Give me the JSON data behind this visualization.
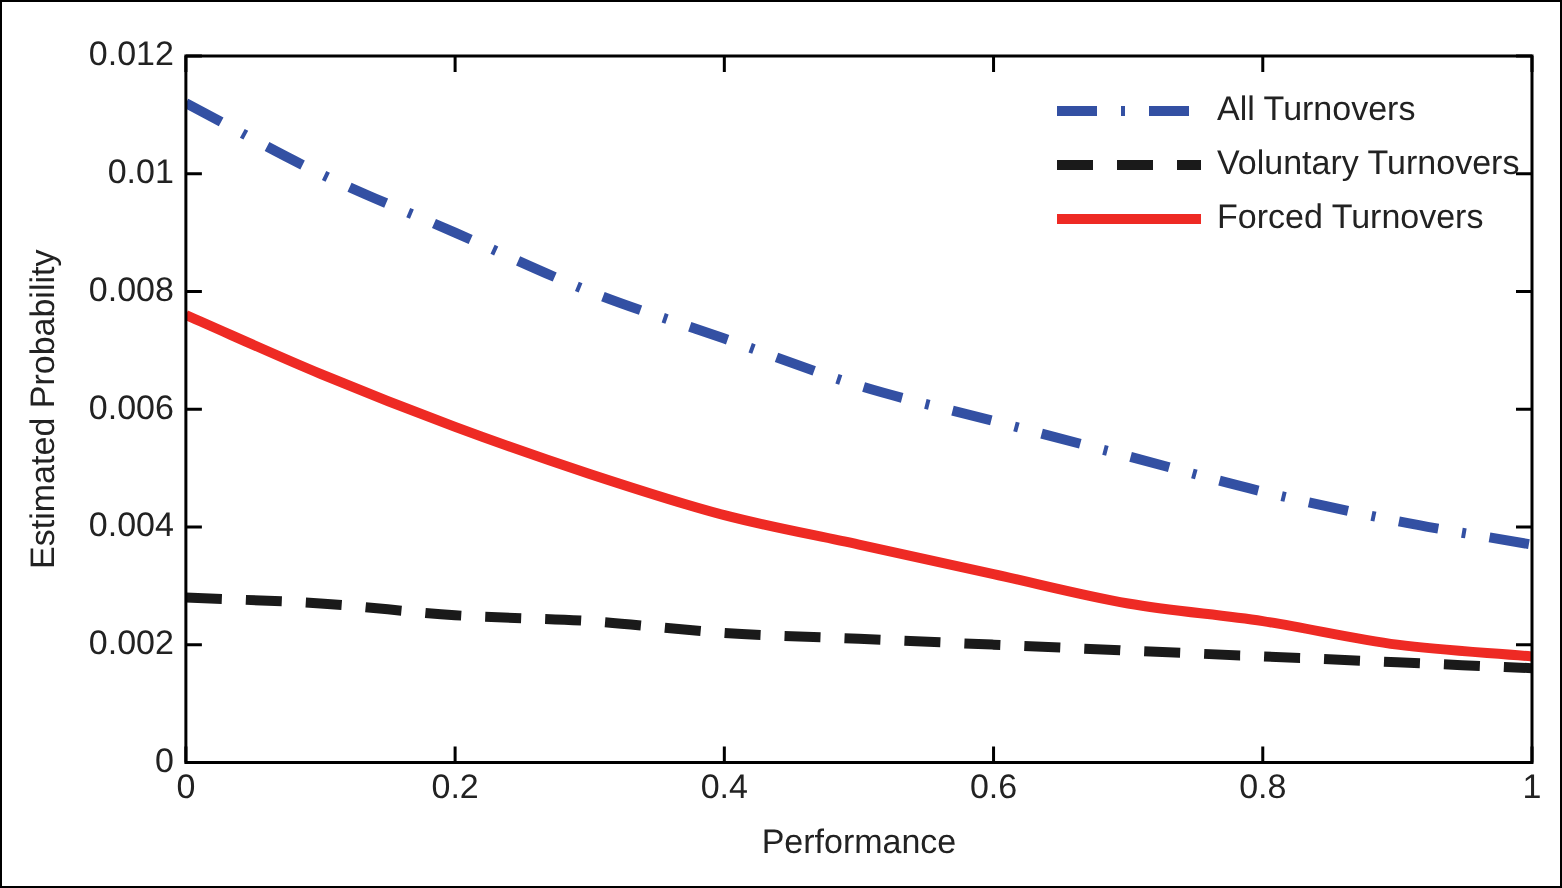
{
  "chart_data": {
    "type": "line",
    "xlabel": "Performance",
    "ylabel": "Estimated Probability",
    "x": [
      0,
      0.1,
      0.2,
      0.3,
      0.4,
      0.5,
      0.6,
      0.7,
      0.8,
      0.9,
      1
    ],
    "series": [
      {
        "name": "All Turnovers",
        "color": "#3350a3",
        "line_style": "dashdot",
        "values": [
          0.0112,
          0.01,
          0.009,
          0.008,
          0.0072,
          0.0064,
          0.0058,
          0.0052,
          0.0046,
          0.0041,
          0.0037
        ]
      },
      {
        "name": "Voluntary Turnovers",
        "color": "#1a1a1a",
        "line_style": "dashed",
        "values": [
          0.0028,
          0.0027,
          0.0025,
          0.0024,
          0.0022,
          0.0021,
          0.002,
          0.0019,
          0.0018,
          0.0017,
          0.0016
        ]
      },
      {
        "name": "Forced Turnovers",
        "color": "#ee2a24",
        "line_style": "solid",
        "values": [
          0.0076,
          0.0066,
          0.0057,
          0.0049,
          0.0042,
          0.0037,
          0.0032,
          0.0027,
          0.0024,
          0.002,
          0.0018
        ]
      }
    ],
    "xlim": [
      0,
      1
    ],
    "xticks": [
      0,
      0.2,
      0.4,
      0.6,
      0.8,
      1
    ],
    "ylim": [
      0,
      0.012
    ],
    "yticks": [
      0,
      0.002,
      0.004,
      0.006,
      0.008,
      0.01,
      0.012
    ],
    "grid": false,
    "legend": "top right",
    "marker": "none"
  }
}
